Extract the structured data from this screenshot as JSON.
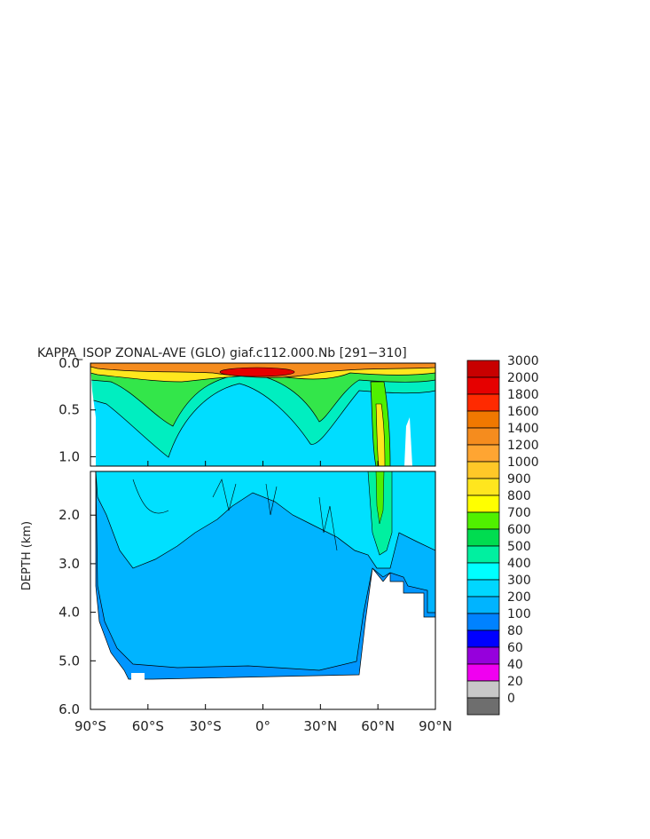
{
  "chart_data": {
    "type": "heatmap",
    "title": "KAPPA_ISOP ZONAL-AVE (GLO) giaf.c112.000.Nb [291−310]",
    "ylabel": "DEPTH (km)",
    "xlabel": "",
    "x_ticks": [
      "90°S",
      "60°S",
      "30°S",
      "0°",
      "30°N",
      "60°N",
      "90°N"
    ],
    "x_tick_values": [
      -90,
      -60,
      -30,
      0,
      30,
      60,
      90
    ],
    "xlim": [
      -90,
      90
    ],
    "upper_panel": {
      "ylim": [
        0,
        1.1
      ],
      "y_ticks": [
        "0.0",
        "0.5",
        "1.0"
      ],
      "y_tick_values": [
        0,
        0.5,
        1.0
      ]
    },
    "lower_panel": {
      "ylim": [
        1.1,
        6.0
      ],
      "y_ticks": [
        "2.0",
        "3.0",
        "4.0",
        "5.0",
        "6.0"
      ],
      "y_tick_values": [
        2.0,
        3.0,
        4.0,
        5.0,
        6.0
      ]
    },
    "colorbar": {
      "levels": [
        "3000",
        "2000",
        "1800",
        "1600",
        "1400",
        "1200",
        "1000",
        "900",
        "800",
        "700",
        "600",
        "500",
        "400",
        "300",
        "200",
        "100",
        "80",
        "60",
        "40",
        "20",
        "0"
      ],
      "colors": [
        "#c80000",
        "#e60000",
        "#ff2a00",
        "#f07800",
        "#f58c1e",
        "#ffa532",
        "#ffc828",
        "#ffe61e",
        "#ffff00",
        "#50f000",
        "#00dc50",
        "#00f0a0",
        "#00ffff",
        "#00d7ff",
        "#00b4ff",
        "#0082ff",
        "#0000ff",
        "#9600dc",
        "#f000f0",
        "#c8c8c8",
        "#6e6e6e"
      ]
    },
    "grid": false,
    "legend": "right"
  }
}
